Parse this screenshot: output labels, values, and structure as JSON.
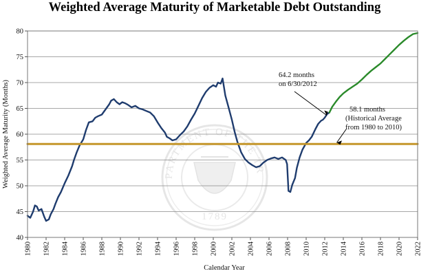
{
  "chart_data": {
    "type": "line",
    "title": "Weighted Average Maturity of Marketable Debt Outstanding",
    "xlabel": "Calendar Year",
    "ylabel": "Weighted Average Maturity (Months)",
    "xlim": [
      1980,
      2022
    ],
    "ylim": [
      40,
      80
    ],
    "x_ticks": [
      "1980",
      "1982",
      "1984",
      "1986",
      "1988",
      "1990",
      "1992",
      "1994",
      "1996",
      "1998",
      "2000",
      "2002",
      "2004",
      "2006",
      "2008",
      "2010",
      "2012",
      "2014",
      "2016",
      "2018",
      "2020",
      "2022"
    ],
    "y_ticks": [
      "40",
      "45",
      "50",
      "55",
      "60",
      "65",
      "70",
      "75",
      "80"
    ],
    "grid": true,
    "series": [
      {
        "color": "#1f3c6e",
        "x": [
          1980.0,
          1980.3,
          1980.6,
          1980.8,
          1981.0,
          1981.2,
          1981.5,
          1981.8,
          1982.0,
          1982.3,
          1982.5,
          1982.8,
          1983.0,
          1983.3,
          1983.6,
          1984.0,
          1984.4,
          1984.8,
          1985.0,
          1985.3,
          1985.6,
          1986.0,
          1986.3,
          1986.6,
          1987.0,
          1987.3,
          1987.6,
          1988.0,
          1988.4,
          1988.8,
          1989.0,
          1989.3,
          1989.6,
          1989.9,
          1990.2,
          1990.5,
          1990.8,
          1991.2,
          1991.6,
          1992.0,
          1992.4,
          1992.8,
          1993.2,
          1993.6,
          1994.0,
          1994.4,
          1994.8,
          1995.0,
          1995.3,
          1995.6,
          1996.0,
          1996.4,
          1996.8,
          1997.2,
          1997.6,
          1998.0,
          1998.4,
          1998.8,
          1999.2,
          1999.6,
          2000.0,
          2000.3,
          2000.5,
          2000.8,
          2001.0,
          2001.3,
          2001.6,
          2002.0,
          2002.3,
          2002.6,
          2003.0,
          2003.4,
          2003.8,
          2004.2,
          2004.6,
          2005.0,
          2005.4,
          2005.8,
          2006.2,
          2006.6,
          2007.0,
          2007.4,
          2007.8,
          2007.95,
          2008.1,
          2008.3,
          2008.5,
          2008.8,
          2009.0,
          2009.3,
          2009.6,
          2010.0,
          2010.3,
          2010.6,
          2011.0,
          2011.3,
          2011.6,
          2011.8,
          2012.0,
          2012.25,
          2012.5
        ],
        "y": [
          44.2,
          43.8,
          45.0,
          46.2,
          46.0,
          45.2,
          45.5,
          44.0,
          43.2,
          43.5,
          44.5,
          45.5,
          46.5,
          47.8,
          48.8,
          50.5,
          52.0,
          53.8,
          55.0,
          56.5,
          57.8,
          59.0,
          60.8,
          62.3,
          62.5,
          63.2,
          63.5,
          63.8,
          64.8,
          65.8,
          66.5,
          66.8,
          66.2,
          65.8,
          66.2,
          66.0,
          65.7,
          65.2,
          65.5,
          65.0,
          64.8,
          64.5,
          64.2,
          63.5,
          62.3,
          61.2,
          60.3,
          59.5,
          59.2,
          58.8,
          59.0,
          59.8,
          60.5,
          61.5,
          62.8,
          64.0,
          65.5,
          67.0,
          68.2,
          69.0,
          69.5,
          69.2,
          70.0,
          69.8,
          70.8,
          67.5,
          65.5,
          62.8,
          60.5,
          58.5,
          56.5,
          55.2,
          54.5,
          54.0,
          53.6,
          53.8,
          54.5,
          55.0,
          55.3,
          55.5,
          55.2,
          55.5,
          55.0,
          54.2,
          49.0,
          48.8,
          50.2,
          51.5,
          53.5,
          55.5,
          57.0,
          58.3,
          58.8,
          59.5,
          61.0,
          62.0,
          62.6,
          62.8,
          63.2,
          63.9,
          64.2
        ]
      },
      {
        "color": "#2a8a2a",
        "x": [
          2012.5,
          2012.8,
          2013.2,
          2013.6,
          2014.0,
          2014.5,
          2015.0,
          2015.5,
          2016.0,
          2016.5,
          2017.0,
          2017.5,
          2018.0,
          2018.5,
          2019.0,
          2019.5,
          2020.0,
          2020.5,
          2021.0,
          2021.5,
          2022.0
        ],
        "y": [
          64.2,
          65.3,
          66.3,
          67.2,
          67.9,
          68.6,
          69.2,
          69.8,
          70.6,
          71.5,
          72.3,
          73.0,
          73.7,
          74.6,
          75.5,
          76.4,
          77.3,
          78.1,
          78.8,
          79.4,
          79.6
        ]
      },
      {
        "color": "#c4962a",
        "x": [
          1980,
          2022
        ],
        "y": [
          58.1,
          58.1
        ]
      }
    ],
    "annotations": [
      {
        "lines": [
          "64.2 months",
          "on 6/30/2012"
        ],
        "x": 2012.5,
        "y": 64.2
      },
      {
        "lines": [
          "58.1 months",
          "(Historical Average",
          "from 1980 to 2010)"
        ],
        "x": 2013.0,
        "y": 58.1
      }
    ]
  },
  "watermark": {
    "top_text": "THE DEPARTMENT OF THE TREASURY",
    "year": "1789"
  }
}
